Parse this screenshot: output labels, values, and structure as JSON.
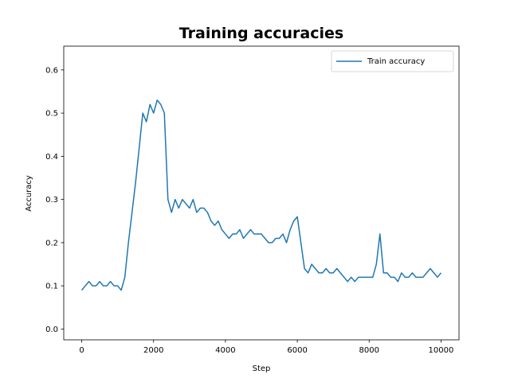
{
  "chart_data": {
    "type": "line",
    "title": "Training accuracies",
    "xlabel": "Step",
    "ylabel": "Accuracy",
    "xlim": [
      -500,
      10500
    ],
    "ylim": [
      -0.025,
      0.655
    ],
    "xticks": [
      0,
      2000,
      4000,
      6000,
      8000,
      10000
    ],
    "xtick_labels": [
      "0",
      "2000",
      "4000",
      "6000",
      "8000",
      "10000"
    ],
    "yticks": [
      0.0,
      0.1,
      0.2,
      0.3,
      0.4,
      0.5,
      0.6
    ],
    "ytick_labels": [
      "0.0",
      "0.1",
      "0.2",
      "0.3",
      "0.4",
      "0.5",
      "0.6"
    ],
    "grid": false,
    "legend_position": "top-right",
    "series": [
      {
        "name": "Train accuracy",
        "color": "#1f77b4",
        "x": [
          0,
          100,
          200,
          300,
          400,
          500,
          600,
          700,
          800,
          900,
          1000,
          1100,
          1200,
          1300,
          1400,
          1500,
          1600,
          1700,
          1800,
          1900,
          2000,
          2100,
          2200,
          2300,
          2400,
          2500,
          2600,
          2700,
          2800,
          2900,
          3000,
          3100,
          3200,
          3300,
          3400,
          3500,
          3600,
          3700,
          3800,
          3900,
          4000,
          4100,
          4200,
          4300,
          4400,
          4500,
          4600,
          4700,
          4800,
          4900,
          5000,
          5100,
          5200,
          5300,
          5400,
          5500,
          5600,
          5700,
          5800,
          5900,
          6000,
          6100,
          6200,
          6300,
          6400,
          6500,
          6600,
          6700,
          6800,
          6900,
          7000,
          7100,
          7200,
          7300,
          7400,
          7500,
          7600,
          7700,
          7800,
          7900,
          8000,
          8100,
          8200,
          8300,
          8400,
          8500,
          8600,
          8700,
          8800,
          8900,
          9000,
          9100,
          9200,
          9300,
          9400,
          9500,
          9600,
          9700,
          9800,
          9900,
          10000
        ],
        "values": [
          0.09,
          0.1,
          0.11,
          0.1,
          0.1,
          0.11,
          0.1,
          0.1,
          0.11,
          0.1,
          0.1,
          0.09,
          0.12,
          0.2,
          0.27,
          0.34,
          0.42,
          0.5,
          0.48,
          0.52,
          0.5,
          0.53,
          0.52,
          0.5,
          0.3,
          0.27,
          0.3,
          0.28,
          0.3,
          0.29,
          0.28,
          0.3,
          0.27,
          0.28,
          0.28,
          0.27,
          0.25,
          0.24,
          0.25,
          0.23,
          0.22,
          0.21,
          0.22,
          0.22,
          0.23,
          0.21,
          0.22,
          0.23,
          0.22,
          0.22,
          0.22,
          0.21,
          0.2,
          0.2,
          0.21,
          0.21,
          0.22,
          0.2,
          0.23,
          0.25,
          0.26,
          0.2,
          0.14,
          0.13,
          0.15,
          0.14,
          0.13,
          0.13,
          0.14,
          0.13,
          0.13,
          0.14,
          0.13,
          0.12,
          0.11,
          0.12,
          0.11,
          0.12,
          0.12,
          0.12,
          0.12,
          0.12,
          0.15,
          0.22,
          0.13,
          0.13,
          0.12,
          0.12,
          0.11,
          0.13,
          0.12,
          0.12,
          0.13,
          0.12,
          0.12,
          0.12,
          0.13,
          0.14,
          0.13,
          0.12,
          0.13
        ]
      }
    ]
  }
}
